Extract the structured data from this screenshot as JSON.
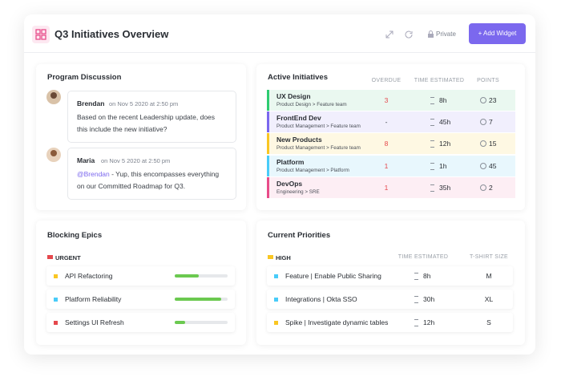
{
  "header": {
    "title": "Q3 Initiatives Overview",
    "privacy": "Private",
    "button": "+ Add Widget"
  },
  "discussion": {
    "title": "Program Discussion",
    "comments": [
      {
        "author": "Brendan",
        "time": "on Nov 5 2020 at 2:50 pm",
        "text": "Based on the recent Leadership update, does this include the new initiative?"
      },
      {
        "author": "Maria",
        "time": "on Nov 5 2020 at 2:50 pm",
        "mention": "@Brendan",
        "text": " - Yup, this encompasses everything on our Committed Roadmap for Q3."
      }
    ]
  },
  "initiatives": {
    "title": "Active Initiatives",
    "columns": [
      "OVERDUE",
      "TIME ESTIMATED",
      "POINTS"
    ],
    "rows": [
      {
        "name": "UX Design",
        "path": "Product Design > Feature team",
        "overdue": 3,
        "time": "8h",
        "points": 23,
        "color": "#2ecc71",
        "background": "#eaf8f0"
      },
      {
        "name": "FrontEnd Dev",
        "path": "Product Management > Feature team",
        "overdue": "-",
        "time": "45h",
        "points": 7,
        "color": "#7b68ee",
        "background": "#f1effd"
      },
      {
        "name": "New Products",
        "path": "Product Management > Feature team",
        "overdue": 8,
        "time": "12h",
        "points": 15,
        "color": "#f9c623",
        "background": "#fef8e3"
      },
      {
        "name": "Platform",
        "path": "Product Management > Platform",
        "overdue": 1,
        "time": "1h",
        "points": 45,
        "color": "#49ccf9",
        "background": "#e8f7fd"
      },
      {
        "name": "DevOps",
        "path": "Engineering > SRE",
        "overdue": 1,
        "time": "35h",
        "points": 2,
        "color": "#e84c89",
        "background": "#fdeef4"
      }
    ]
  },
  "blocking": {
    "title": "Blocking Epics",
    "group": "URGENT",
    "group_color": "#e5484d",
    "rows": [
      {
        "name": "API Refactoring",
        "color": "#f9c623",
        "progress": 45
      },
      {
        "name": "Platform Reliability",
        "color": "#49ccf9",
        "progress": 88
      },
      {
        "name": "Settings UI Refresh",
        "color": "#e5484d",
        "progress": 20
      }
    ]
  },
  "priorities": {
    "title": "Current Priorities",
    "group": "HIGH",
    "group_color": "#f9c623",
    "columns": [
      "TIME ESTIMATED",
      "T-SHIRT SIZE"
    ],
    "rows": [
      {
        "name": "Feature | Enable Public Sharing",
        "color": "#49ccf9",
        "time": "8h",
        "size": "M"
      },
      {
        "name": "Integrations | Okta SSO",
        "color": "#49ccf9",
        "time": "30h",
        "size": "XL"
      },
      {
        "name": "Spike | Investigate dynamic tables",
        "color": "#f9c623",
        "time": "12h",
        "size": "S"
      }
    ]
  }
}
